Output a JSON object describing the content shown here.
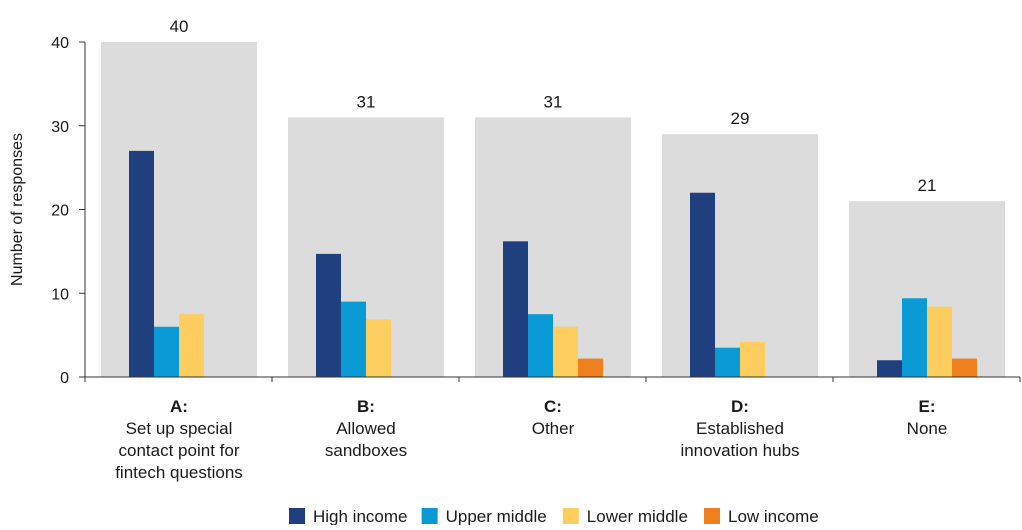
{
  "chart_data": {
    "type": "bar",
    "ylabel": "Number of responses",
    "ylim": [
      0,
      40
    ],
    "yticks": [
      0,
      10,
      20,
      30,
      40
    ],
    "categories": [
      {
        "letter": "A:",
        "lines": [
          "Set up special",
          "contact point for",
          "fintech questions"
        ]
      },
      {
        "letter": "B:",
        "lines": [
          "Allowed",
          "sandboxes"
        ]
      },
      {
        "letter": "C:",
        "lines": [
          "Other"
        ]
      },
      {
        "letter": "D:",
        "lines": [
          "Established",
          "innovation hubs"
        ]
      },
      {
        "letter": "E:",
        "lines": [
          "None"
        ]
      }
    ],
    "totals": [
      40,
      31,
      31,
      29,
      21
    ],
    "total_color": "#dcdcdc",
    "series": [
      {
        "name": "High income",
        "color": "#1f3f7f",
        "values": [
          27,
          14.7,
          16.2,
          22,
          2
        ]
      },
      {
        "name": "Upper middle",
        "color": "#0a9ad6",
        "values": [
          6,
          9,
          7.5,
          3.5,
          9.4
        ]
      },
      {
        "name": "Lower middle",
        "color": "#fdcd5f",
        "values": [
          7.5,
          6.9,
          6,
          4.2,
          8.4
        ]
      },
      {
        "name": "Low income",
        "color": "#f07f1e",
        "values": [
          0,
          0,
          2.2,
          0,
          2.2
        ]
      }
    ],
    "grid": false,
    "legend_position": "bottom"
  }
}
